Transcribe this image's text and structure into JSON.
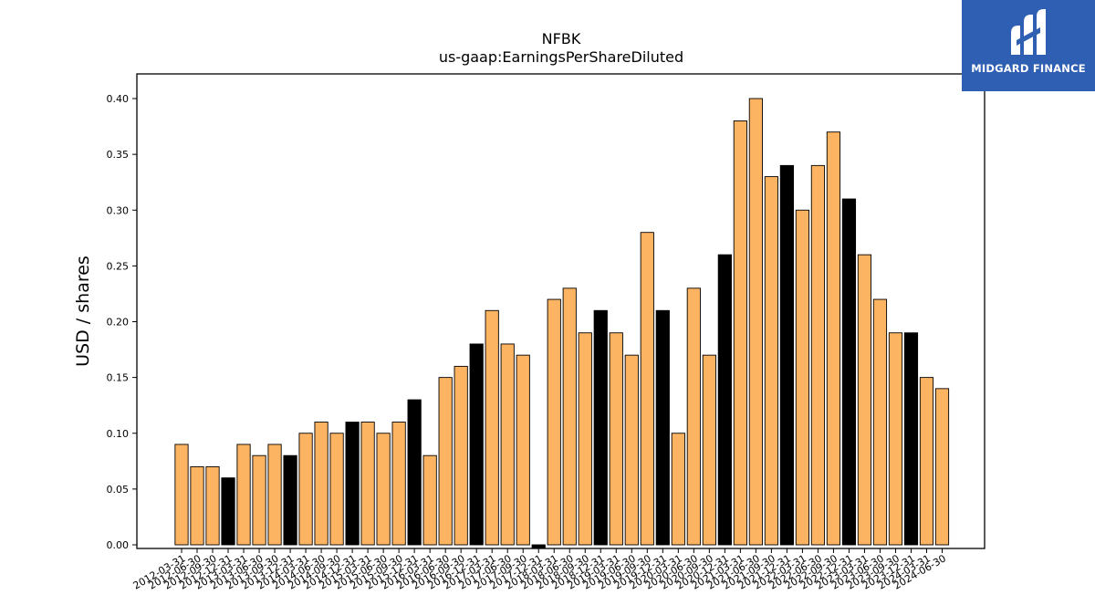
{
  "brand": {
    "name": "MIDGARD FINANCE",
    "background": "#2f5fb3"
  },
  "chart_data": {
    "type": "bar",
    "title": "NFBK",
    "subtitle": "us-gaap:EarningsPerShareDiluted",
    "ylabel": "USD / shares",
    "xlabel": "",
    "ylim": [
      0,
      0.4
    ],
    "yticks": [
      "0.00",
      "0.05",
      "0.10",
      "0.15",
      "0.20",
      "0.25",
      "0.30",
      "0.35",
      "0.40"
    ],
    "colors": {
      "quarter": "#fdb462",
      "year_end": "#000000",
      "edge": "#000000"
    },
    "categories": [
      "2012-03-31",
      "2012-06-30",
      "2012-09-30",
      "2012-12-31",
      "2013-03-31",
      "2013-06-30",
      "2013-09-30",
      "2013-12-31",
      "2014-03-31",
      "2014-06-30",
      "2014-09-30",
      "2014-12-31",
      "2015-03-31",
      "2015-06-30",
      "2015-09-30",
      "2015-12-31",
      "2016-03-31",
      "2016-06-30",
      "2016-09-30",
      "2016-12-31",
      "2017-03-31",
      "2017-06-30",
      "2017-09-30",
      "2017-12-31",
      "2018-03-31",
      "2018-06-30",
      "2018-09-30",
      "2018-12-31",
      "2019-03-31",
      "2019-06-30",
      "2019-09-30",
      "2019-12-31",
      "2020-03-31",
      "2020-06-30",
      "2020-09-30",
      "2020-12-31",
      "2021-03-31",
      "2021-06-30",
      "2021-09-30",
      "2021-12-31",
      "2022-03-31",
      "2022-06-30",
      "2022-09-30",
      "2022-12-31",
      "2023-03-31",
      "2023-06-30",
      "2023-09-30",
      "2023-12-31",
      "2024-03-31",
      "2024-06-30"
    ],
    "values": [
      0.09,
      0.07,
      0.07,
      0.06,
      0.09,
      0.08,
      0.09,
      0.08,
      0.1,
      0.11,
      0.1,
      0.11,
      0.11,
      0.1,
      0.11,
      0.13,
      0.08,
      0.15,
      0.16,
      0.18,
      0.21,
      0.18,
      0.17,
      -0.002,
      0.22,
      0.23,
      0.19,
      0.21,
      0.19,
      0.17,
      0.28,
      0.21,
      0.1,
      0.23,
      0.17,
      0.26,
      0.38,
      0.4,
      0.33,
      0.34,
      0.3,
      0.34,
      0.37,
      0.31,
      0.26,
      0.22,
      0.19,
      0.19,
      0.15,
      0.14
    ],
    "year_end": [
      false,
      false,
      false,
      true,
      false,
      false,
      false,
      true,
      false,
      false,
      false,
      true,
      false,
      false,
      false,
      true,
      false,
      false,
      false,
      true,
      false,
      false,
      false,
      true,
      false,
      false,
      false,
      true,
      false,
      false,
      false,
      true,
      false,
      false,
      false,
      true,
      false,
      false,
      false,
      true,
      false,
      false,
      false,
      true,
      false,
      false,
      false,
      true,
      false,
      false
    ]
  }
}
